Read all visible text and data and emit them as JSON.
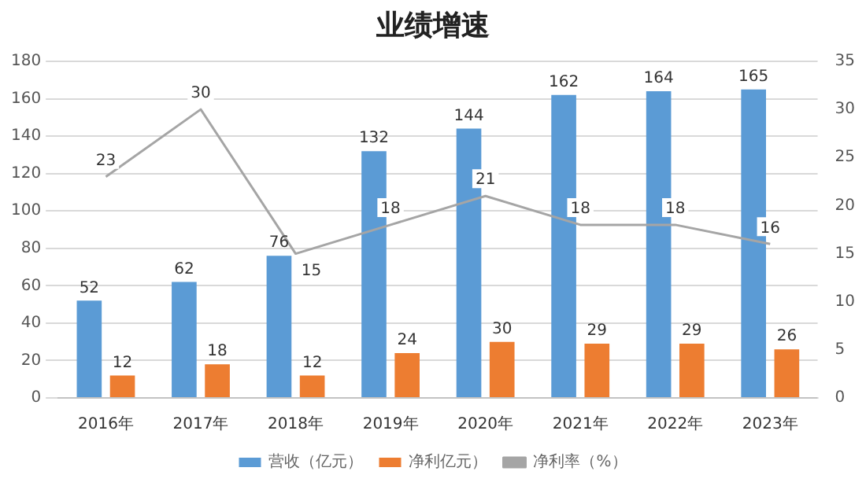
{
  "chart_data": {
    "type": "bar",
    "title": "业绩增速",
    "categories": [
      "2016年",
      "2017年",
      "2018年",
      "2019年",
      "2020年",
      "2021年",
      "2022年",
      "2023年"
    ],
    "series": [
      {
        "name": "营收（亿元）",
        "color": "#5b9bd5",
        "values": [
          52,
          62,
          76,
          132,
          144,
          162,
          164,
          165
        ]
      },
      {
        "name": "净利亿元）",
        "color": "#ed7d31",
        "values": [
          12,
          18,
          12,
          24,
          30,
          29,
          29,
          26
        ]
      },
      {
        "name": "净利率（%）",
        "type": "line",
        "axis": "y2",
        "color": "#a5a5a5",
        "values": [
          23,
          30,
          15,
          18,
          21,
          18,
          18,
          16
        ]
      }
    ],
    "ylim": [
      0,
      180
    ],
    "yticks": [
      0,
      20,
      40,
      60,
      80,
      100,
      120,
      140,
      160,
      180
    ],
    "y2lim": [
      0,
      35
    ],
    "y2ticks": [
      0,
      5,
      10,
      15,
      20,
      25,
      30,
      35
    ],
    "grid": "y",
    "legend": "bottom",
    "marker": "none",
    "line_style": "solid",
    "data_labels": true
  }
}
